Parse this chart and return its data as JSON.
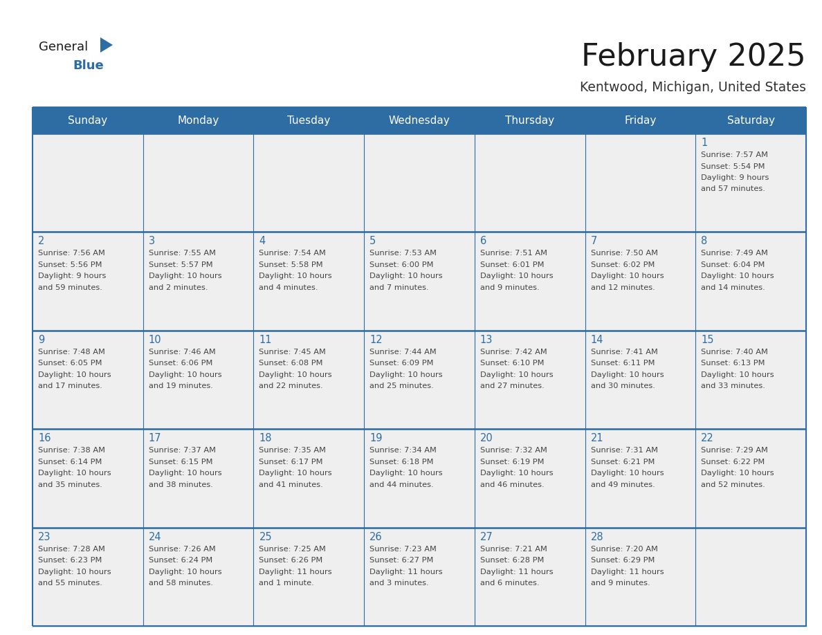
{
  "title": "February 2025",
  "subtitle": "Kentwood, Michigan, United States",
  "header_bg": "#2E6DA4",
  "header_text_color": "#FFFFFF",
  "cell_bg": "#EFEFEF",
  "cell_bg_white": "#FFFFFF",
  "border_color": "#2E6DA4",
  "day_headers": [
    "Sunday",
    "Monday",
    "Tuesday",
    "Wednesday",
    "Thursday",
    "Friday",
    "Saturday"
  ],
  "title_color": "#1a1a1a",
  "subtitle_color": "#333333",
  "day_num_color": "#2E6DA4",
  "cell_text_color": "#444444",
  "calendar": [
    [
      null,
      null,
      null,
      null,
      null,
      null,
      1
    ],
    [
      2,
      3,
      4,
      5,
      6,
      7,
      8
    ],
    [
      9,
      10,
      11,
      12,
      13,
      14,
      15
    ],
    [
      16,
      17,
      18,
      19,
      20,
      21,
      22
    ],
    [
      23,
      24,
      25,
      26,
      27,
      28,
      null
    ]
  ],
  "cell_data": {
    "1": {
      "sunrise": "7:57 AM",
      "sunset": "5:54 PM",
      "daylight_line1": "Daylight: 9 hours",
      "daylight_line2": "and 57 minutes."
    },
    "2": {
      "sunrise": "7:56 AM",
      "sunset": "5:56 PM",
      "daylight_line1": "Daylight: 9 hours",
      "daylight_line2": "and 59 minutes."
    },
    "3": {
      "sunrise": "7:55 AM",
      "sunset": "5:57 PM",
      "daylight_line1": "Daylight: 10 hours",
      "daylight_line2": "and 2 minutes."
    },
    "4": {
      "sunrise": "7:54 AM",
      "sunset": "5:58 PM",
      "daylight_line1": "Daylight: 10 hours",
      "daylight_line2": "and 4 minutes."
    },
    "5": {
      "sunrise": "7:53 AM",
      "sunset": "6:00 PM",
      "daylight_line1": "Daylight: 10 hours",
      "daylight_line2": "and 7 minutes."
    },
    "6": {
      "sunrise": "7:51 AM",
      "sunset": "6:01 PM",
      "daylight_line1": "Daylight: 10 hours",
      "daylight_line2": "and 9 minutes."
    },
    "7": {
      "sunrise": "7:50 AM",
      "sunset": "6:02 PM",
      "daylight_line1": "Daylight: 10 hours",
      "daylight_line2": "and 12 minutes."
    },
    "8": {
      "sunrise": "7:49 AM",
      "sunset": "6:04 PM",
      "daylight_line1": "Daylight: 10 hours",
      "daylight_line2": "and 14 minutes."
    },
    "9": {
      "sunrise": "7:48 AM",
      "sunset": "6:05 PM",
      "daylight_line1": "Daylight: 10 hours",
      "daylight_line2": "and 17 minutes."
    },
    "10": {
      "sunrise": "7:46 AM",
      "sunset": "6:06 PM",
      "daylight_line1": "Daylight: 10 hours",
      "daylight_line2": "and 19 minutes."
    },
    "11": {
      "sunrise": "7:45 AM",
      "sunset": "6:08 PM",
      "daylight_line1": "Daylight: 10 hours",
      "daylight_line2": "and 22 minutes."
    },
    "12": {
      "sunrise": "7:44 AM",
      "sunset": "6:09 PM",
      "daylight_line1": "Daylight: 10 hours",
      "daylight_line2": "and 25 minutes."
    },
    "13": {
      "sunrise": "7:42 AM",
      "sunset": "6:10 PM",
      "daylight_line1": "Daylight: 10 hours",
      "daylight_line2": "and 27 minutes."
    },
    "14": {
      "sunrise": "7:41 AM",
      "sunset": "6:11 PM",
      "daylight_line1": "Daylight: 10 hours",
      "daylight_line2": "and 30 minutes."
    },
    "15": {
      "sunrise": "7:40 AM",
      "sunset": "6:13 PM",
      "daylight_line1": "Daylight: 10 hours",
      "daylight_line2": "and 33 minutes."
    },
    "16": {
      "sunrise": "7:38 AM",
      "sunset": "6:14 PM",
      "daylight_line1": "Daylight: 10 hours",
      "daylight_line2": "and 35 minutes."
    },
    "17": {
      "sunrise": "7:37 AM",
      "sunset": "6:15 PM",
      "daylight_line1": "Daylight: 10 hours",
      "daylight_line2": "and 38 minutes."
    },
    "18": {
      "sunrise": "7:35 AM",
      "sunset": "6:17 PM",
      "daylight_line1": "Daylight: 10 hours",
      "daylight_line2": "and 41 minutes."
    },
    "19": {
      "sunrise": "7:34 AM",
      "sunset": "6:18 PM",
      "daylight_line1": "Daylight: 10 hours",
      "daylight_line2": "and 44 minutes."
    },
    "20": {
      "sunrise": "7:32 AM",
      "sunset": "6:19 PM",
      "daylight_line1": "Daylight: 10 hours",
      "daylight_line2": "and 46 minutes."
    },
    "21": {
      "sunrise": "7:31 AM",
      "sunset": "6:21 PM",
      "daylight_line1": "Daylight: 10 hours",
      "daylight_line2": "and 49 minutes."
    },
    "22": {
      "sunrise": "7:29 AM",
      "sunset": "6:22 PM",
      "daylight_line1": "Daylight: 10 hours",
      "daylight_line2": "and 52 minutes."
    },
    "23": {
      "sunrise": "7:28 AM",
      "sunset": "6:23 PM",
      "daylight_line1": "Daylight: 10 hours",
      "daylight_line2": "and 55 minutes."
    },
    "24": {
      "sunrise": "7:26 AM",
      "sunset": "6:24 PM",
      "daylight_line1": "Daylight: 10 hours",
      "daylight_line2": "and 58 minutes."
    },
    "25": {
      "sunrise": "7:25 AM",
      "sunset": "6:26 PM",
      "daylight_line1": "Daylight: 11 hours",
      "daylight_line2": "and 1 minute."
    },
    "26": {
      "sunrise": "7:23 AM",
      "sunset": "6:27 PM",
      "daylight_line1": "Daylight: 11 hours",
      "daylight_line2": "and 3 minutes."
    },
    "27": {
      "sunrise": "7:21 AM",
      "sunset": "6:28 PM",
      "daylight_line1": "Daylight: 11 hours",
      "daylight_line2": "and 6 minutes."
    },
    "28": {
      "sunrise": "7:20 AM",
      "sunset": "6:29 PM",
      "daylight_line1": "Daylight: 11 hours",
      "daylight_line2": "and 9 minutes."
    }
  },
  "logo_triangle_color": "#2E6DA4"
}
